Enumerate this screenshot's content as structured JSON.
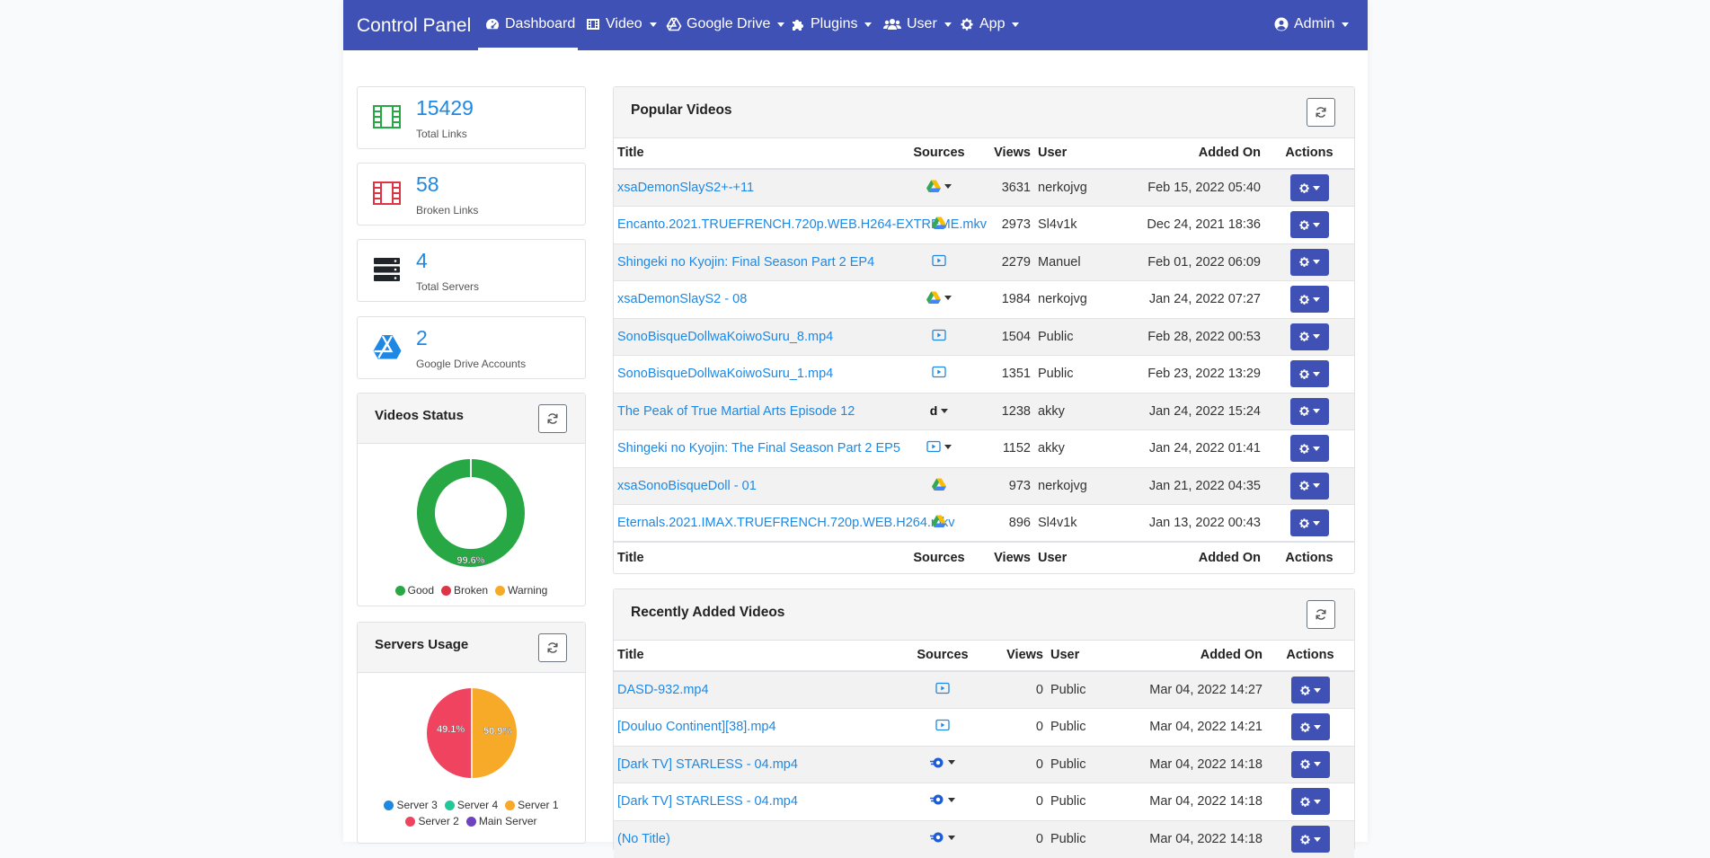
{
  "nav": {
    "brand": "Control Panel",
    "items": [
      {
        "label": "Dashboard",
        "icon": "dashboard-icon"
      },
      {
        "label": "Video",
        "icon": "film-icon"
      },
      {
        "label": "Google Drive",
        "icon": "google-drive-icon"
      },
      {
        "label": "Plugins",
        "icon": "puzzle-icon"
      },
      {
        "label": "User",
        "icon": "users-icon"
      },
      {
        "label": "App",
        "icon": "gear-icon"
      }
    ],
    "account": "Admin"
  },
  "stats": [
    {
      "value": "15429",
      "label": "Total Links",
      "icon": "film-icon",
      "color": "#28a745"
    },
    {
      "value": "58",
      "label": "Broken Links",
      "icon": "film-icon",
      "color": "#dc3545"
    },
    {
      "value": "4",
      "label": "Total Servers",
      "icon": "server-icon",
      "color": "#212529"
    },
    {
      "value": "2",
      "label": "Google Drive Accounts",
      "icon": "google-drive-icon",
      "color": "#1e88e5"
    }
  ],
  "videos_status": {
    "title": "Videos Status",
    "percent_label": "99.6%",
    "legend": [
      {
        "label": "Good",
        "color": "#28a745"
      },
      {
        "label": "Broken",
        "color": "#dc3545"
      },
      {
        "label": "Warning",
        "color": "#f7a928"
      }
    ]
  },
  "servers_usage": {
    "title": "Servers Usage",
    "left_label": "49.1%",
    "right_label": "50.9%",
    "legend": [
      {
        "label": "Server 3",
        "color": "#1e88e5"
      },
      {
        "label": "Server 4",
        "color": "#20c997"
      },
      {
        "label": "Server 1",
        "color": "#f7a928"
      },
      {
        "label": "Server 2",
        "color": "#f0435f"
      },
      {
        "label": "Main Server",
        "color": "#6f42c1"
      }
    ]
  },
  "popular": {
    "title": "Popular Videos",
    "columns": [
      "Title",
      "Sources",
      "Views",
      "User",
      "Added On",
      "Actions"
    ],
    "rows": [
      {
        "title": "xsaDemonSlayS2+-+11",
        "source": "gdrive",
        "dropdown": true,
        "views": "3631",
        "user": "nerkojvg",
        "added": "Feb 15, 2022 05:40"
      },
      {
        "title": "Encanto.2021.TRUEFRENCH.720p.WEB.H264-EXTREME.mkv",
        "source": "gdrive",
        "dropdown": false,
        "views": "2973",
        "user": "Sl4v1k",
        "added": "Dec 24, 2021 18:36"
      },
      {
        "title": "Shingeki no Kyojin: Final Season Part 2 EP4",
        "source": "video",
        "dropdown": false,
        "views": "2279",
        "user": "Manuel",
        "added": "Feb 01, 2022 06:09"
      },
      {
        "title": "xsaDemonSlayS2 - 08",
        "source": "gdrive",
        "dropdown": true,
        "views": "1984",
        "user": "nerkojvg",
        "added": "Jan 24, 2022 07:27"
      },
      {
        "title": "SonoBisqueDollwaKoiwoSuru_8.mp4",
        "source": "video",
        "dropdown": false,
        "views": "1504",
        "user": "Public",
        "added": "Feb 28, 2022 00:53"
      },
      {
        "title": "SonoBisqueDollwaKoiwoSuru_1.mp4",
        "source": "video",
        "dropdown": false,
        "views": "1351",
        "user": "Public",
        "added": "Feb 23, 2022 13:29"
      },
      {
        "title": "The Peak of True Martial Arts Episode 12",
        "source": "d",
        "dropdown": true,
        "views": "1238",
        "user": "akky",
        "added": "Jan 24, 2022 15:24"
      },
      {
        "title": "Shingeki no Kyojin: The Final Season Part 2 EP5",
        "source": "video",
        "dropdown": true,
        "views": "1152",
        "user": "akky",
        "added": "Jan 24, 2022 01:41"
      },
      {
        "title": "xsaSonoBisqueDoll - 01",
        "source": "gdrive",
        "dropdown": false,
        "views": "973",
        "user": "nerkojvg",
        "added": "Jan 21, 2022 04:35"
      },
      {
        "title": "Eternals.2021.IMAX.TRUEFRENCH.720p.WEB.H264.mkv",
        "source": "gdrive",
        "dropdown": false,
        "views": "896",
        "user": "Sl4v1k",
        "added": "Jan 13, 2022 00:43"
      }
    ]
  },
  "recent": {
    "title": "Recently Added Videos",
    "columns": [
      "Title",
      "Sources",
      "Views",
      "User",
      "Added On",
      "Actions"
    ],
    "rows": [
      {
        "title": "DASD-932.mp4",
        "source": "video",
        "dropdown": false,
        "views": "0",
        "user": "Public",
        "added": "Mar 04, 2022 14:27"
      },
      {
        "title": "[Douluo Continent][38].mp4",
        "source": "video",
        "dropdown": false,
        "views": "0",
        "user": "Public",
        "added": "Mar 04, 2022 14:21"
      },
      {
        "title": "[Dark TV] STARLESS - 04.mp4",
        "source": "stream",
        "dropdown": true,
        "views": "0",
        "user": "Public",
        "added": "Mar 04, 2022 14:18"
      },
      {
        "title": "[Dark TV] STARLESS - 04.mp4",
        "source": "stream",
        "dropdown": true,
        "views": "0",
        "user": "Public",
        "added": "Mar 04, 2022 14:18"
      },
      {
        "title": "(No Title)",
        "source": "stream",
        "dropdown": true,
        "views": "0",
        "user": "Public",
        "added": "Mar 04, 2022 14:18"
      }
    ]
  }
}
